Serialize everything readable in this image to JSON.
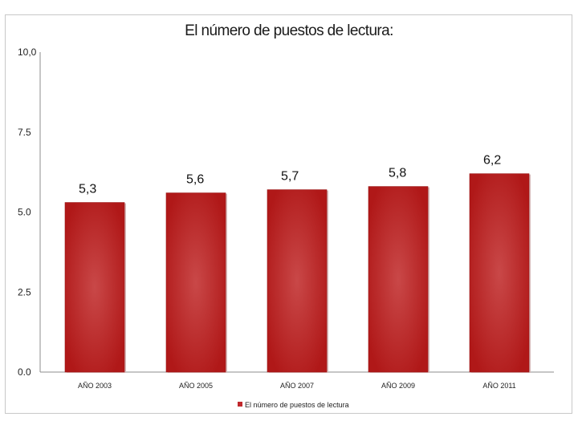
{
  "chart_data": {
    "type": "bar",
    "title": "El número de puestos de lectura:",
    "categories": [
      "AÑO 2003",
      "AÑO 2005",
      "AÑO 2007",
      "AÑO 2009",
      "AÑO 2011"
    ],
    "values": [
      5.3,
      5.6,
      5.7,
      5.8,
      6.2
    ],
    "value_labels": [
      "5,3",
      "5,6",
      "5,7",
      "5,8",
      "6,2"
    ],
    "series": [
      {
        "name": "El número de puestos de lectura",
        "values": [
          5.3,
          5.6,
          5.7,
          5.8,
          6.2
        ]
      }
    ],
    "yticks": [
      0,
      2.5,
      5,
      7.5,
      10
    ],
    "ytick_labels": [
      "0.0",
      "2.5",
      "5.0",
      "7.5",
      "10,0"
    ],
    "ylim": [
      0,
      10
    ],
    "xlabel": "",
    "ylabel": "",
    "grid": false,
    "legend_position": "bottom",
    "bar_color": "#c0282c"
  }
}
